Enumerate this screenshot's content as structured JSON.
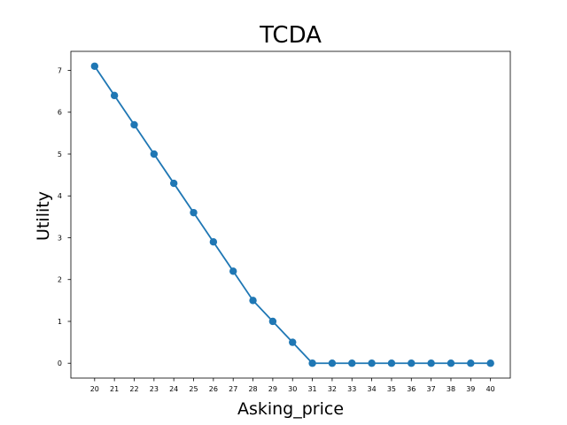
{
  "chart_data": {
    "type": "line",
    "title": "TCDA",
    "xlabel": "Asking_price",
    "ylabel": "Utility",
    "x": [
      20,
      21,
      22,
      23,
      24,
      25,
      26,
      27,
      28,
      29,
      30,
      31,
      32,
      33,
      34,
      35,
      36,
      37,
      38,
      39,
      40
    ],
    "series": [
      {
        "values": [
          7.1,
          6.4,
          5.7,
          5.0,
          4.3,
          3.6,
          2.9,
          2.2,
          1.5,
          1.0,
          0.5,
          0,
          0,
          0,
          0,
          0,
          0,
          0,
          0,
          0,
          0
        ]
      }
    ],
    "xticks": [
      "20",
      "21",
      "22",
      "23",
      "24",
      "25",
      "26",
      "27",
      "28",
      "29",
      "30",
      "31",
      "32",
      "33",
      "34",
      "35",
      "36",
      "37",
      "38",
      "39",
      "40"
    ],
    "yticks": [
      "0",
      "1",
      "2",
      "3",
      "4",
      "5",
      "6",
      "7"
    ],
    "xlim": [
      18.8,
      41.0
    ],
    "ylim": [
      -0.355,
      7.455
    ],
    "grid": false,
    "colors": {
      "line": "#1f77b4",
      "marker": "#1f77b4",
      "axes": "#000000"
    }
  }
}
